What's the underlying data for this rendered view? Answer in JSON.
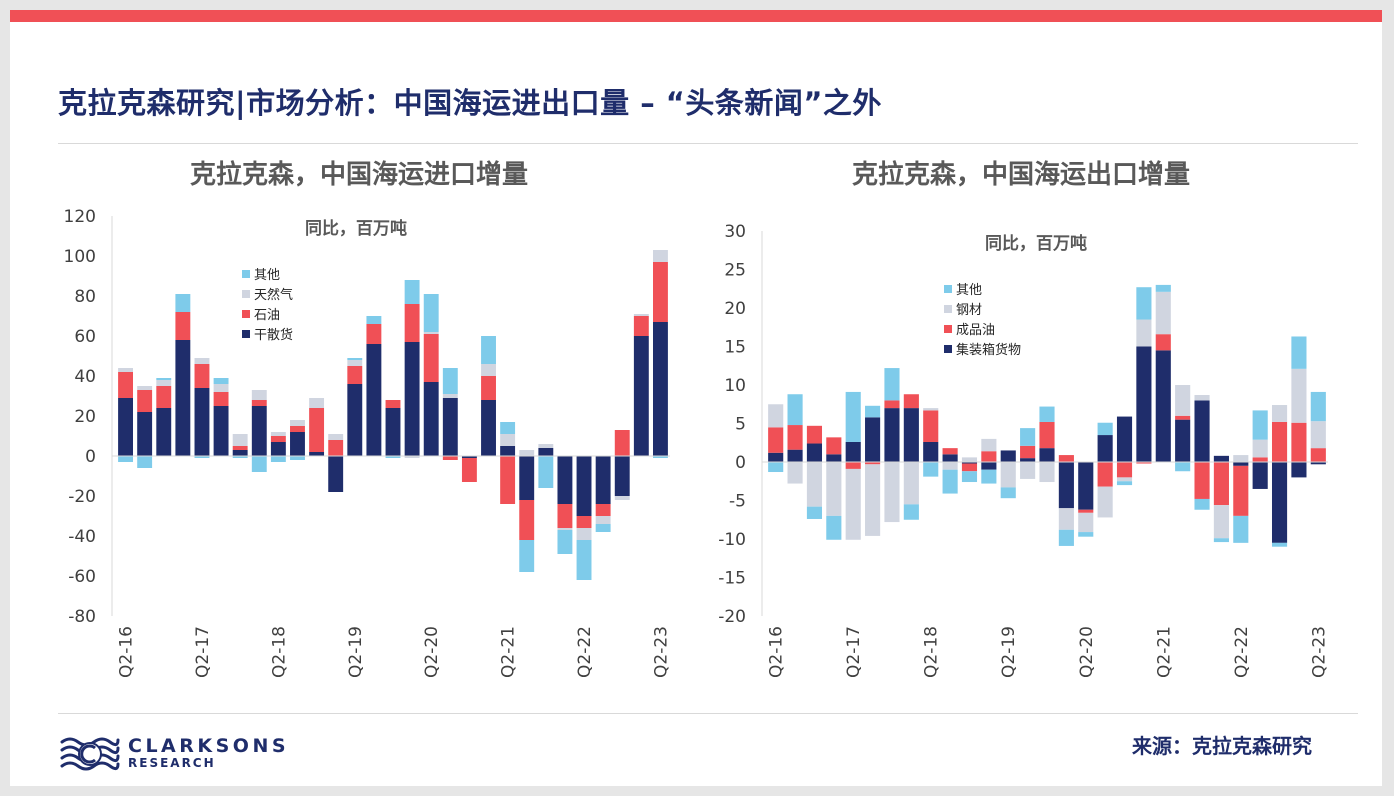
{
  "slide": {
    "title": "克拉克森研究|市场分析：中国海运进出口量 – “头条新闻”之外",
    "accent_color": "#f05056",
    "source": "来源：克拉克森研究",
    "logo": {
      "name": "CLARKSONS",
      "sub": "RESEARCH",
      "icon": "wave-c-icon"
    }
  },
  "chart_data": [
    {
      "type": "bar",
      "stacked": true,
      "title": "克拉克森，中国海运进口增量",
      "unit_label": "同比，百万吨",
      "ylim": [
        -80,
        120
      ],
      "yticks": [
        -80,
        -60,
        -40,
        -20,
        0,
        20,
        40,
        60,
        80,
        100,
        120
      ],
      "xtick_labels": [
        "Q2-16",
        "Q2-17",
        "Q2-18",
        "Q2-19",
        "Q2-20",
        "Q2-21",
        "Q2-22",
        "Q2-23"
      ],
      "xtick_indices": [
        0,
        4,
        8,
        12,
        16,
        20,
        24,
        28
      ],
      "categories": [
        "Q2-16",
        "Q3-16",
        "Q4-16",
        "Q1-17",
        "Q2-17",
        "Q3-17",
        "Q4-17",
        "Q1-18",
        "Q2-18",
        "Q3-18",
        "Q4-18",
        "Q1-19",
        "Q2-19",
        "Q3-19",
        "Q4-19",
        "Q1-20",
        "Q2-20",
        "Q3-20",
        "Q4-20",
        "Q1-21",
        "Q2-21",
        "Q3-21",
        "Q4-21",
        "Q1-22",
        "Q2-22",
        "Q3-22",
        "Q4-22",
        "Q1-23",
        "Q2-23"
      ],
      "legend_position": "upper-left",
      "series": [
        {
          "name": "干散货",
          "color": "#1f2d6b",
          "values": [
            29,
            22,
            24,
            58,
            34,
            25,
            3,
            25,
            7,
            12,
            2,
            -18,
            36,
            56,
            24,
            57,
            37,
            29,
            -1,
            28,
            5,
            -22,
            4,
            -24,
            -30,
            -24,
            -20,
            60,
            67
          ]
        },
        {
          "name": "石油",
          "color": "#f05056",
          "values": [
            13,
            11,
            11,
            14,
            12,
            7,
            2,
            3,
            3,
            3,
            22,
            8,
            9,
            10,
            4,
            19,
            24,
            -2,
            -12,
            12,
            -24,
            -20,
            0,
            -12,
            -6,
            -6,
            13,
            10,
            30
          ]
        },
        {
          "name": "天然气",
          "color": "#d0d5e0",
          "values": [
            2,
            2,
            3,
            0,
            3,
            4,
            6,
            5,
            2,
            3,
            5,
            3,
            3,
            0,
            0,
            -1,
            1,
            2,
            0,
            6,
            6,
            3,
            2,
            -1,
            -6,
            -4,
            -2,
            1,
            6
          ]
        },
        {
          "name": "其他",
          "color": "#7ecbea",
          "values": [
            -3,
            -6,
            1,
            9,
            -1,
            3,
            -1,
            -8,
            -3,
            -2,
            0,
            0,
            1,
            4,
            -1,
            12,
            19,
            13,
            0,
            14,
            6,
            -16,
            -16,
            -12,
            -20,
            -4,
            0,
            0,
            -1
          ]
        }
      ]
    },
    {
      "type": "bar",
      "stacked": true,
      "title": "克拉克森，中国海运出口增量",
      "unit_label": "同比，百万吨",
      "ylim": [
        -20,
        30
      ],
      "yticks": [
        -20,
        -15,
        -10,
        -5,
        0,
        5,
        10,
        15,
        20,
        25,
        30
      ],
      "xtick_labels": [
        "Q2-16",
        "Q2-17",
        "Q2-18",
        "Q2-19",
        "Q2-20",
        "Q2-21",
        "Q2-22",
        "Q2-23"
      ],
      "xtick_indices": [
        0,
        4,
        8,
        12,
        16,
        20,
        24,
        28
      ],
      "categories": [
        "Q2-16",
        "Q3-16",
        "Q4-16",
        "Q1-17",
        "Q2-17",
        "Q3-17",
        "Q4-17",
        "Q1-18",
        "Q2-18",
        "Q3-18",
        "Q4-18",
        "Q1-19",
        "Q2-19",
        "Q3-19",
        "Q4-19",
        "Q1-20",
        "Q2-20",
        "Q3-20",
        "Q4-20",
        "Q1-21",
        "Q2-21",
        "Q3-21",
        "Q4-21",
        "Q1-22",
        "Q2-22",
        "Q3-22",
        "Q4-22",
        "Q1-23",
        "Q2-23"
      ],
      "legend_position": "upper-left",
      "series": [
        {
          "name": "集装箱货物",
          "color": "#1f2d6b",
          "values": [
            1.2,
            1.6,
            2.4,
            1.0,
            2.6,
            5.8,
            7.0,
            7.0,
            2.6,
            1.0,
            -0.2,
            -1.0,
            1.5,
            0.5,
            1.8,
            -6.0,
            -6.2,
            3.5,
            5.9,
            15,
            14.5,
            5.5,
            8,
            0.8,
            -0.5,
            -3.5,
            -10.5,
            -2,
            -0.3
          ]
        },
        {
          "name": "成品油",
          "color": "#f05056",
          "values": [
            3.3,
            3.2,
            2.3,
            2.2,
            -0.9,
            -0.3,
            1.0,
            1.8,
            4.1,
            0.8,
            -1.0,
            1.4,
            0.0,
            1.6,
            3.4,
            0.9,
            -0.4,
            -3.2,
            -2,
            -0.2,
            2.1,
            0.5,
            -4.8,
            -5.6,
            -6.5,
            0.6,
            5.2,
            5.1,
            1.8
          ]
        },
        {
          "name": "钢材",
          "color": "#d0d5e0",
          "values": [
            3.0,
            -2.8,
            -5.8,
            -7.0,
            -9.2,
            -9.3,
            -7.8,
            -5.5,
            0.3,
            -1.0,
            0.6,
            1.6,
            -3.3,
            -2.2,
            -2.6,
            -2.8,
            -2.5,
            -4.0,
            -0.5,
            3.5,
            5.5,
            4.0,
            0.7,
            -4.3,
            0.9,
            2.3,
            2.2,
            7,
            3.5
          ]
        },
        {
          "name": "其他",
          "color": "#7ecbea",
          "values": [
            -1.3,
            4.0,
            -1.6,
            -3.1,
            6.5,
            1.5,
            4.2,
            -2.0,
            -1.9,
            -3.1,
            -1.4,
            -1.8,
            -1.4,
            2.3,
            2.0,
            -2.1,
            -0.6,
            1.6,
            -0.5,
            4.2,
            0.9,
            -1.2,
            -1.4,
            -0.5,
            -3.5,
            3.8,
            -0.5,
            4.2,
            3.8
          ]
        }
      ]
    }
  ]
}
